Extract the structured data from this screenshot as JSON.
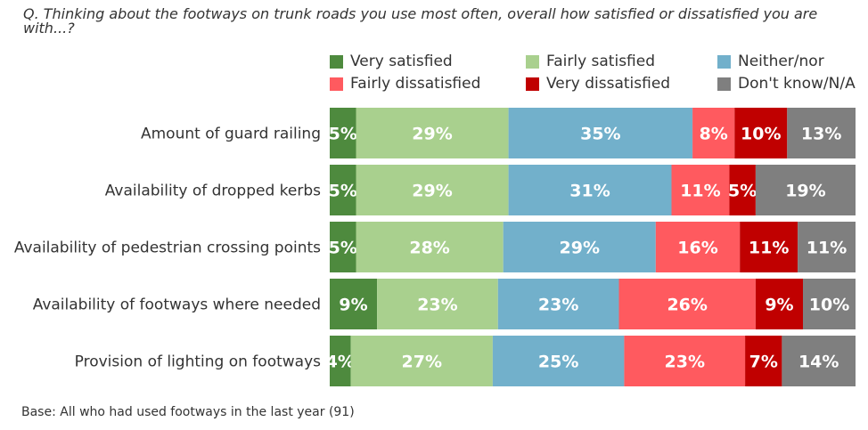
{
  "chart_data": {
    "type": "bar",
    "orientation": "horizontal",
    "stacked": true,
    "title": "Q. Thinking about the footways on trunk roads you use most often, overall how satisfied or dissatisfied you are with...?",
    "categories": [
      "Amount of guard railing",
      "Availability of dropped kerbs",
      "Availability of pedestrian crossing points",
      "Availability of footways where needed",
      "Provision of lighting on footways"
    ],
    "series": [
      {
        "name": "Very satisfied",
        "color": "#4e8a3e",
        "values": [
          5,
          5,
          5,
          9,
          4
        ]
      },
      {
        "name": "Fairly satisfied",
        "color": "#a9d08e",
        "values": [
          29,
          29,
          28,
          23,
          27
        ]
      },
      {
        "name": "Neither/nor",
        "color": "#72b0cb",
        "values": [
          35,
          31,
          29,
          23,
          25
        ]
      },
      {
        "name": "Fairly dissatisfied",
        "color": "#ff5a5f",
        "values": [
          8,
          11,
          16,
          26,
          23
        ]
      },
      {
        "name": "Very dissatisfied",
        "color": "#c00000",
        "values": [
          10,
          5,
          11,
          9,
          7
        ]
      },
      {
        "name": "Don't know/N/A",
        "color": "#7f7f7f",
        "values": [
          13,
          19,
          11,
          10,
          14
        ]
      }
    ],
    "value_suffix": "%",
    "xlim": [
      0,
      100
    ],
    "legend_position": "top-right",
    "footnote": "Base: All who had used footways in the last year (91)"
  }
}
